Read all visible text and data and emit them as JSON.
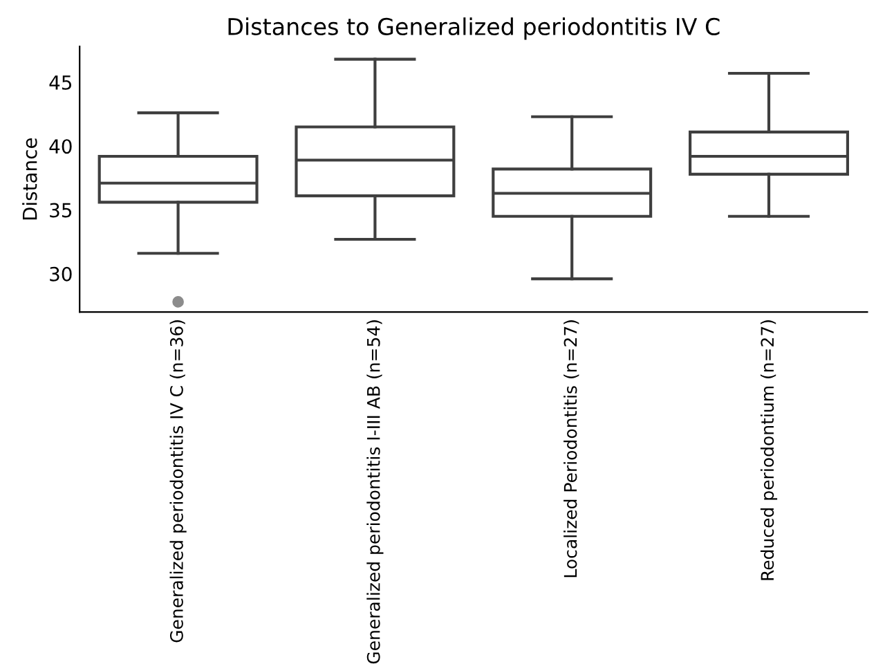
{
  "chart_data": {
    "type": "box",
    "title": "Distances to Generalized periodontitis IV C",
    "ylabel": "Distance",
    "categories": [
      "Generalized periodontitis IV C (n=36)",
      "Generalized periodontitis I-III AB (n=54)",
      "Localized Periodontitis (n=27)",
      "Reduced periodontium (n=27)"
    ],
    "boxes": [
      {
        "low": 31.6,
        "q1": 35.6,
        "median": 37.1,
        "q3": 39.2,
        "high": 42.6,
        "outliers": [
          27.8
        ]
      },
      {
        "low": 32.7,
        "q1": 36.1,
        "median": 38.9,
        "q3": 41.5,
        "high": 46.8
      },
      {
        "low": 29.6,
        "q1": 34.5,
        "median": 36.3,
        "q3": 38.2,
        "high": 42.3
      },
      {
        "low": 34.5,
        "q1": 37.8,
        "median": 39.2,
        "q3": 41.1,
        "high": 45.7
      }
    ],
    "color": "#ffffff",
    "ylim": [
      27.0,
      47.8
    ],
    "yticks": [
      30,
      35,
      40,
      45
    ],
    "grid": false,
    "legend": false
  }
}
